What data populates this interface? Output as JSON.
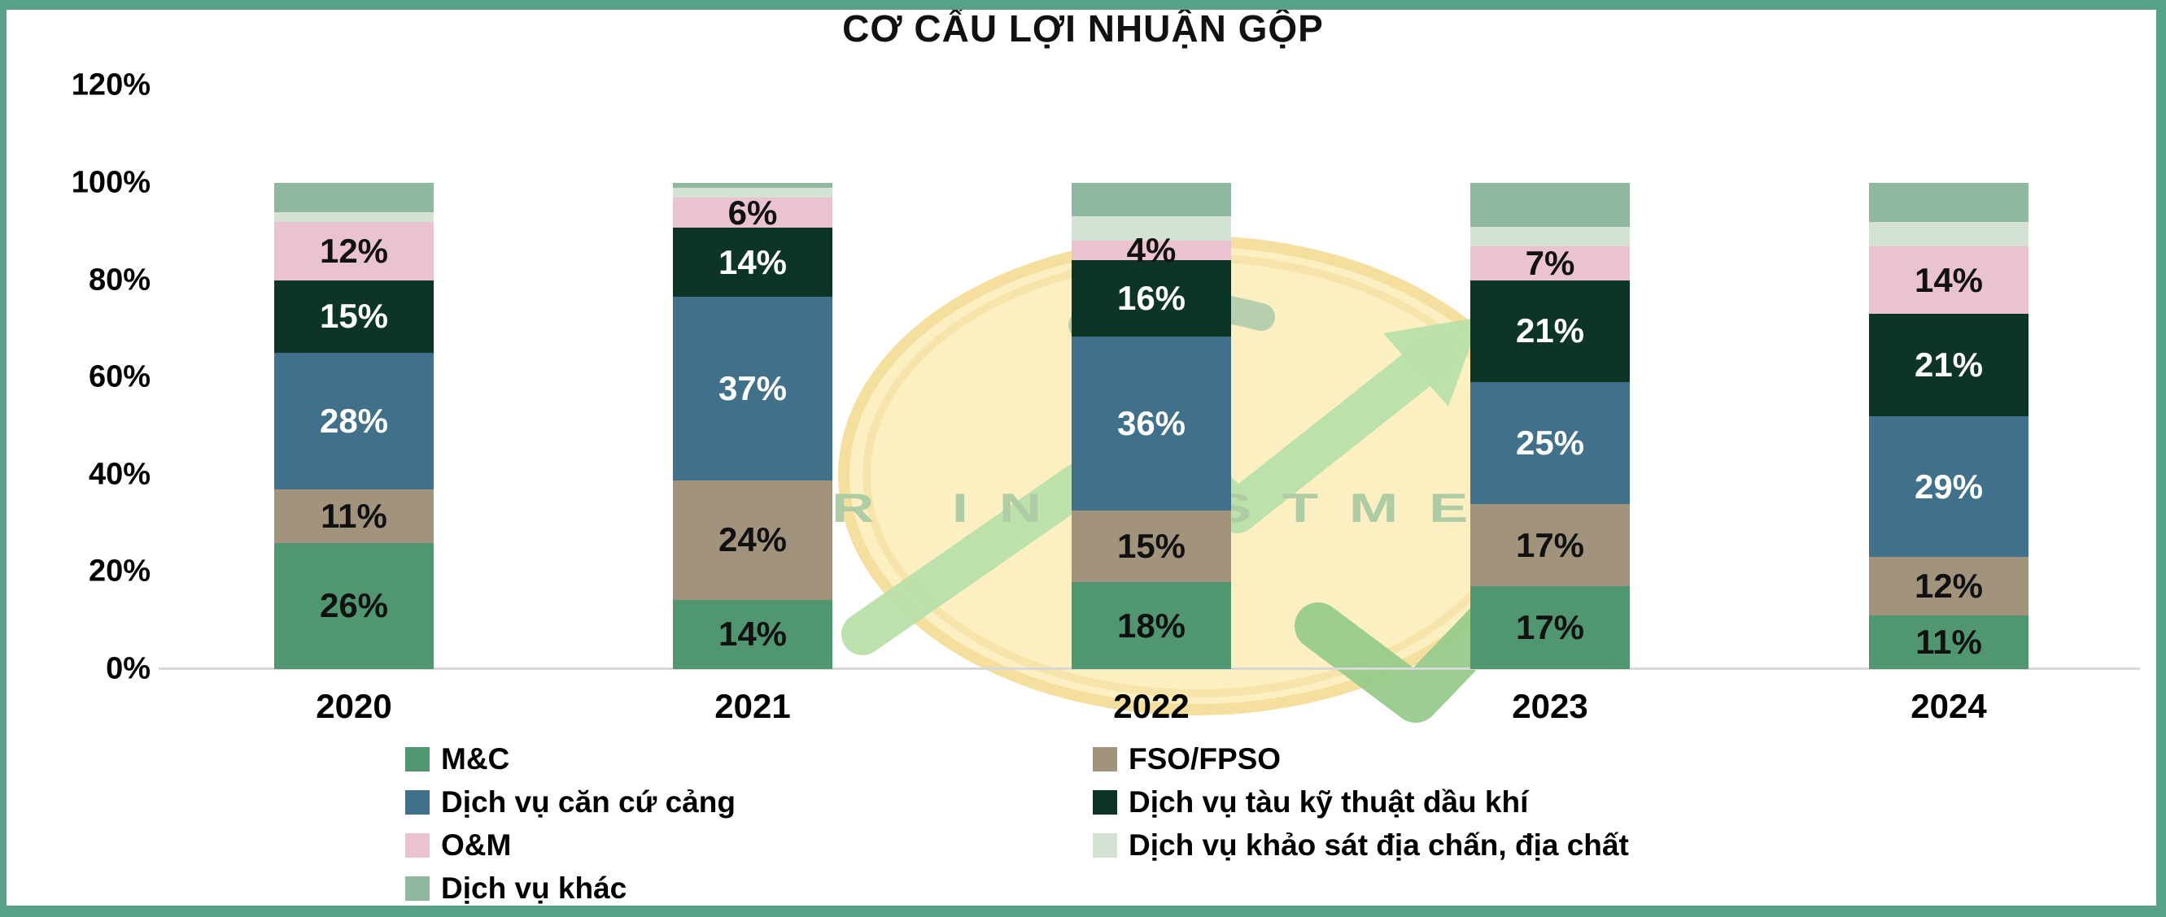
{
  "title": "CƠ CẤU LỢI NHUẬN GỘP",
  "frame_color": "#57a287",
  "axis_line_color": "#d8d8d8",
  "chart_data": {
    "type": "bar",
    "stacked": true,
    "title": "CƠ CẤU LỢI NHUẬN GỘP",
    "categories": [
      "2020",
      "2021",
      "2022",
      "2023",
      "2024"
    ],
    "series": [
      {
        "name": "M&C",
        "color": "#4f9671",
        "label_color": "#111111",
        "show_labels": true,
        "values": [
          26,
          14,
          18,
          17,
          11
        ]
      },
      {
        "name": "FSO/FPSO",
        "color": "#a2937d",
        "label_color": "#111111",
        "show_labels": true,
        "values": [
          11,
          24,
          15,
          17,
          12
        ]
      },
      {
        "name": "Dịch vụ căn cứ cảng",
        "color": "#41708a",
        "label_color": "#ffffff",
        "show_labels": true,
        "values": [
          28,
          37,
          36,
          25,
          29
        ]
      },
      {
        "name": "Dịch vụ tàu kỹ thuật dầu khí",
        "color": "#0d3526",
        "label_color": "#ffffff",
        "show_labels": true,
        "values": [
          15,
          14,
          16,
          21,
          21
        ]
      },
      {
        "name": "O&M",
        "color": "#e9c3d0",
        "label_color": "#111111",
        "show_labels": true,
        "values": [
          12,
          6,
          4,
          7,
          14
        ]
      },
      {
        "name": "Dịch vụ khảo sát địa chấn, địa chất",
        "color": "#d3e2d3",
        "label_color": "#111111",
        "show_labels": false,
        "values": [
          2,
          2,
          5,
          4,
          5
        ]
      },
      {
        "name": "Dịch vụ khác",
        "color": "#8eb8a0",
        "label_color": "#111111",
        "show_labels": false,
        "values": [
          6,
          1,
          7,
          9,
          8
        ]
      }
    ],
    "yticks": [
      "0%",
      "20%",
      "40%",
      "60%",
      "80%",
      "100%",
      "120%"
    ],
    "ylim": [
      0,
      120
    ],
    "grid": false,
    "legend_position": "bottom"
  },
  "legend": {
    "columns": [
      [
        "M&C",
        "Dịch vụ căn cứ cảng",
        "O&M",
        "Dịch vụ khác"
      ],
      [
        "FSO/FPSO",
        "Dịch vụ tàu kỹ thuật dầu khí",
        "Dịch vụ khảo sát địa chấn, địa chất"
      ]
    ]
  },
  "watermark": {
    "text": "TQR INVESTMENT"
  }
}
